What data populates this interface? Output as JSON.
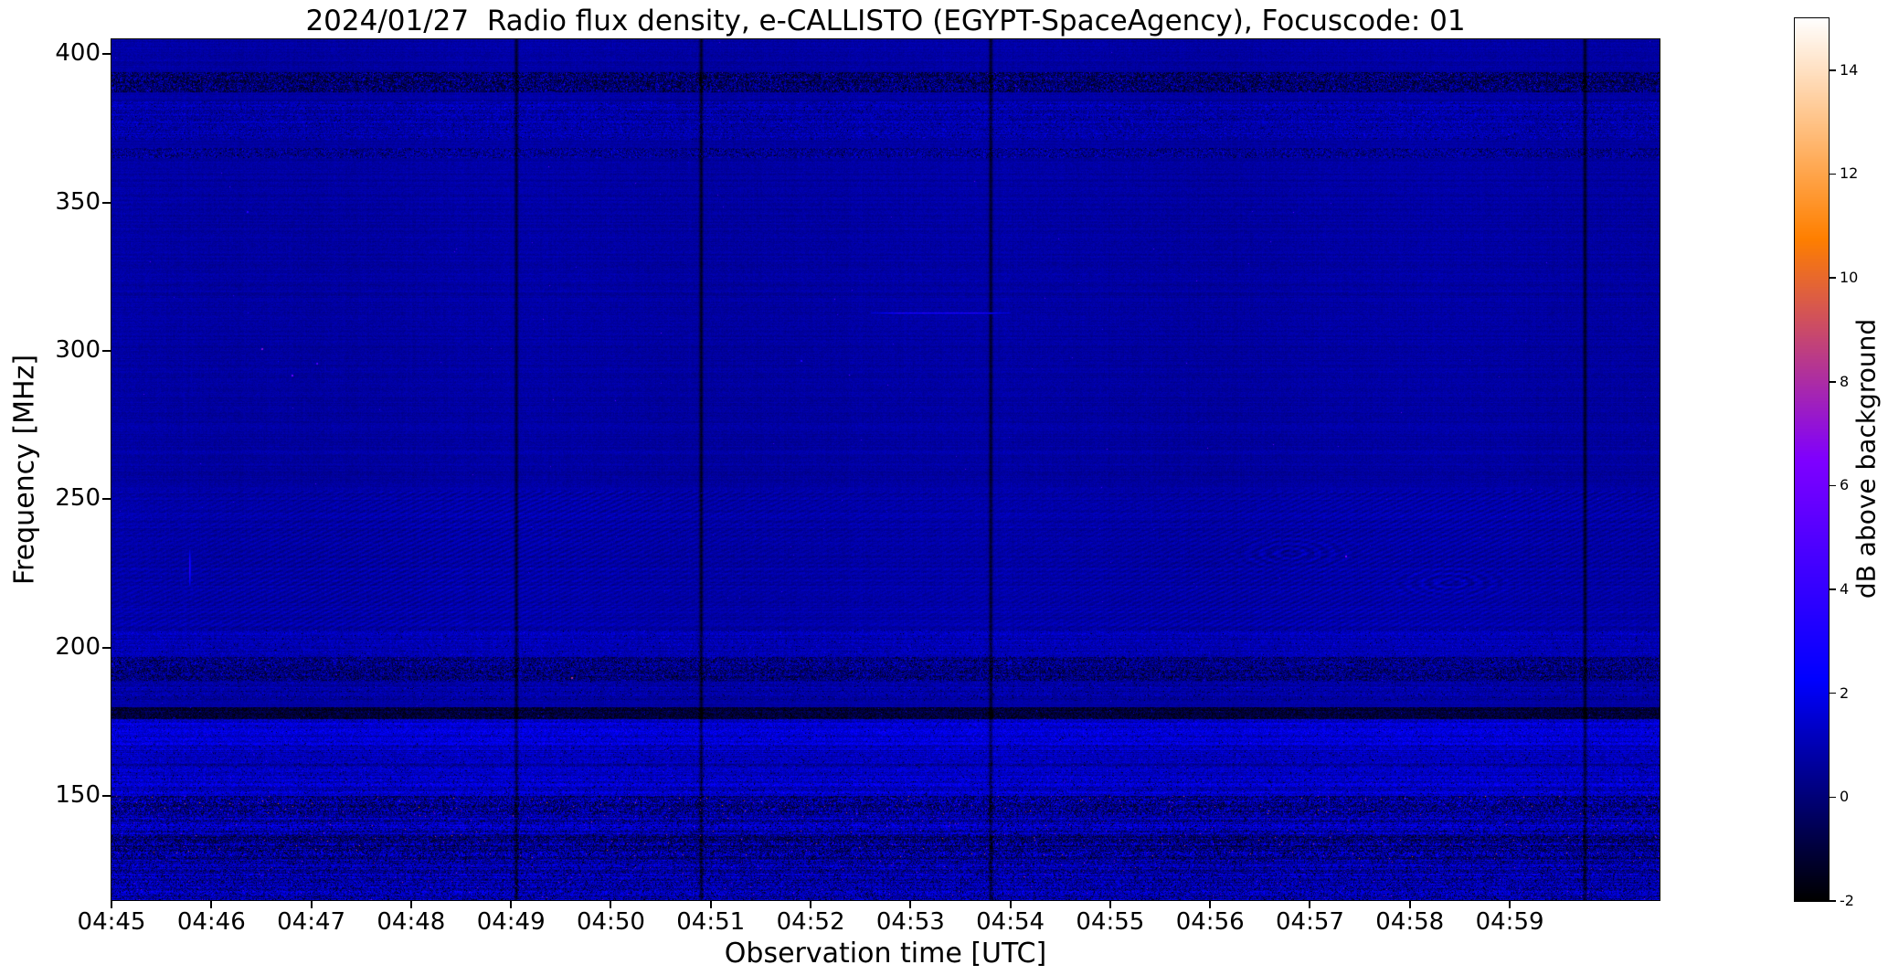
{
  "figure": {
    "background": "#ffffff",
    "frame_color": "#000000"
  },
  "chart_data": {
    "type": "heatmap",
    "title": "2024/01/27  Radio flux density, e-CALLISTO (EGYPT-SpaceAgency), Focuscode: 01",
    "xlabel": "Observation time [UTC]",
    "ylabel": "Frequency [MHz]",
    "x_ticks": [
      "04:45",
      "04:46",
      "04:47",
      "04:48",
      "04:49",
      "04:50",
      "04:51",
      "04:52",
      "04:53",
      "04:54",
      "04:55",
      "04:56",
      "04:57",
      "04:58",
      "04:59"
    ],
    "x_start_utc": "04:45",
    "x_duration_minutes": 15.5,
    "y_ticks": [
      150,
      200,
      250,
      300,
      350,
      400
    ],
    "ylim": [
      115,
      405
    ],
    "grid": false,
    "colormap": "gnuplot2",
    "colorbar": {
      "label": "dB above background",
      "ticks": [
        -2,
        0,
        2,
        4,
        6,
        8,
        10,
        12,
        14
      ],
      "vmin": -2,
      "vmax": 15
    },
    "background_level_db": 0.7,
    "default_band": {
      "f_lo": 115,
      "f_hi": 405,
      "base_db": 0.7,
      "noise_db": 0.32,
      "row_var": 0.22,
      "dark_p": 0,
      "sp_p": 0.00012,
      "sp_lo": 2.5,
      "sp_hi": 5,
      "ripple": 0
    },
    "bands": [
      {
        "f_lo": 387,
        "f_hi": 394,
        "base_db": 0.1,
        "noise_db": 1.5,
        "row_var": 0.3,
        "dark_p": 0.22,
        "sp_p": 0.012,
        "sp_lo": 2,
        "sp_hi": 5,
        "ripple": 0
      },
      {
        "f_lo": 371,
        "f_hi": 384,
        "base_db": 0.85,
        "noise_db": 0.8,
        "row_var": 0.4,
        "dark_p": 0.01,
        "sp_p": 0.004,
        "sp_lo": 2,
        "sp_hi": 3.5,
        "ripple": 0
      },
      {
        "f_lo": 365,
        "f_hi": 368.5,
        "base_db": 0.5,
        "noise_db": 1.1,
        "row_var": 0.3,
        "dark_p": 0.06,
        "sp_p": 0.01,
        "sp_lo": 2,
        "sp_hi": 3,
        "ripple": 0
      },
      {
        "f_lo": 253,
        "f_hi": 365,
        "base_db": 0.7,
        "noise_db": 0.32,
        "row_var": 0.22,
        "dark_p": 0,
        "sp_p": 0.00015,
        "sp_lo": 2.5,
        "sp_hi": 6,
        "ripple": 0
      },
      {
        "f_lo": 206,
        "f_hi": 253,
        "base_db": 0.78,
        "noise_db": 0.35,
        "row_var": 0.25,
        "dark_p": 0,
        "sp_p": 0.0002,
        "sp_lo": 2.5,
        "sp_hi": 4,
        "ripple": 0.42
      },
      {
        "f_lo": 197,
        "f_hi": 206,
        "base_db": 1.0,
        "noise_db": 0.65,
        "row_var": 0.35,
        "dark_p": 0.01,
        "sp_p": 0.006,
        "sp_lo": 2,
        "sp_hi": 3.5,
        "ripple": 0
      },
      {
        "f_lo": 189,
        "f_hi": 197,
        "base_db": 0.35,
        "noise_db": 1.2,
        "row_var": 0.4,
        "dark_p": 0.16,
        "sp_p": 0.006,
        "sp_lo": 2,
        "sp_hi": 4,
        "ripple": 0
      },
      {
        "f_lo": 182,
        "f_hi": 189,
        "base_db": 0.8,
        "noise_db": 0.6,
        "row_var": 0.4,
        "dark_p": 0.02,
        "sp_p": 0.004,
        "sp_lo": 2,
        "sp_hi": 3,
        "ripple": 0
      },
      {
        "f_lo": 176,
        "f_hi": 180,
        "base_db": -0.9,
        "noise_db": 0.9,
        "row_var": 0.5,
        "dark_p": 0.25,
        "sp_p": 0.002,
        "sp_lo": 2,
        "sp_hi": 3,
        "ripple": 0
      },
      {
        "f_lo": 167,
        "f_hi": 176,
        "base_db": 1.6,
        "noise_db": 0.85,
        "row_var": 0.55,
        "dark_p": 0.01,
        "sp_p": 0.008,
        "sp_lo": 2.5,
        "sp_hi": 4,
        "ripple": 0
      },
      {
        "f_lo": 157,
        "f_hi": 167,
        "base_db": 1.05,
        "noise_db": 0.75,
        "row_var": 0.6,
        "dark_p": 0.02,
        "sp_p": 0.005,
        "sp_lo": 2.5,
        "sp_hi": 4,
        "ripple": 0
      },
      {
        "f_lo": 150,
        "f_hi": 157,
        "base_db": 1.35,
        "noise_db": 0.9,
        "row_var": 0.55,
        "dark_p": 0.03,
        "sp_p": 0.008,
        "sp_lo": 2.5,
        "sp_hi": 4.5,
        "ripple": 0
      },
      {
        "f_lo": 144,
        "f_hi": 150,
        "base_db": 0.7,
        "noise_db": 1.7,
        "row_var": 0.6,
        "dark_p": 0.14,
        "sp_p": 0.006,
        "sp_lo": 3,
        "sp_hi": 11,
        "ripple": 0
      },
      {
        "f_lo": 137,
        "f_hi": 144,
        "base_db": 1.1,
        "noise_db": 1.2,
        "row_var": 0.8,
        "dark_p": 0.08,
        "sp_p": 0.004,
        "sp_lo": 3,
        "sp_hi": 9,
        "ripple": 0
      },
      {
        "f_lo": 129,
        "f_hi": 137,
        "base_db": 0.5,
        "noise_db": 1.5,
        "row_var": 0.8,
        "dark_p": 0.18,
        "sp_p": 0.005,
        "sp_lo": 3,
        "sp_hi": 10,
        "ripple": 0
      },
      {
        "f_lo": 115,
        "f_hi": 129,
        "base_db": 0.95,
        "noise_db": 1.2,
        "row_var": 0.85,
        "dark_p": 0.1,
        "sp_p": 0.003,
        "sp_lo": 2.5,
        "sp_hi": 8,
        "ripple": 0
      }
    ],
    "vertical_dropout_lines_min": [
      4.05,
      5.9,
      8.8,
      14.75
    ],
    "transients": {
      "hline": {
        "f": 313,
        "t_start": 7.6,
        "t_end": 9.0,
        "amp_db": 3.2
      },
      "vstreak": {
        "t": 0.78,
        "f_lo": 221,
        "f_hi": 233,
        "amp_db": 3.6
      },
      "dots": [
        {
          "t": 1.5,
          "f": 301,
          "amp_db": 8
        },
        {
          "t": 1.8,
          "f": 292,
          "amp_db": 7
        },
        {
          "t": 2.05,
          "f": 296,
          "amp_db": 6
        },
        {
          "t": 1.35,
          "f": 347,
          "amp_db": 4
        },
        {
          "t": 12.35,
          "f": 231,
          "amp_db": 8
        },
        {
          "t": 6.9,
          "f": 297,
          "amp_db": 4
        },
        {
          "t": 4.6,
          "f": 190,
          "amp_db": 9
        }
      ]
    },
    "description": "Quiet solar radio spectrogram: mostly uniform dark-blue background (~0-1 dB) with horizontal RFI bands below ~200 MHz, a speckled interference band near 390 MHz, diagonal fringe patterns at 210-250 MHz, a short bright horizontal line at ~313 MHz near 04:53, bright speckle rows below 150 MHz and dark vertical dropout lines at ~04:49, ~04:51, ~04:54 and near 05:00."
  }
}
